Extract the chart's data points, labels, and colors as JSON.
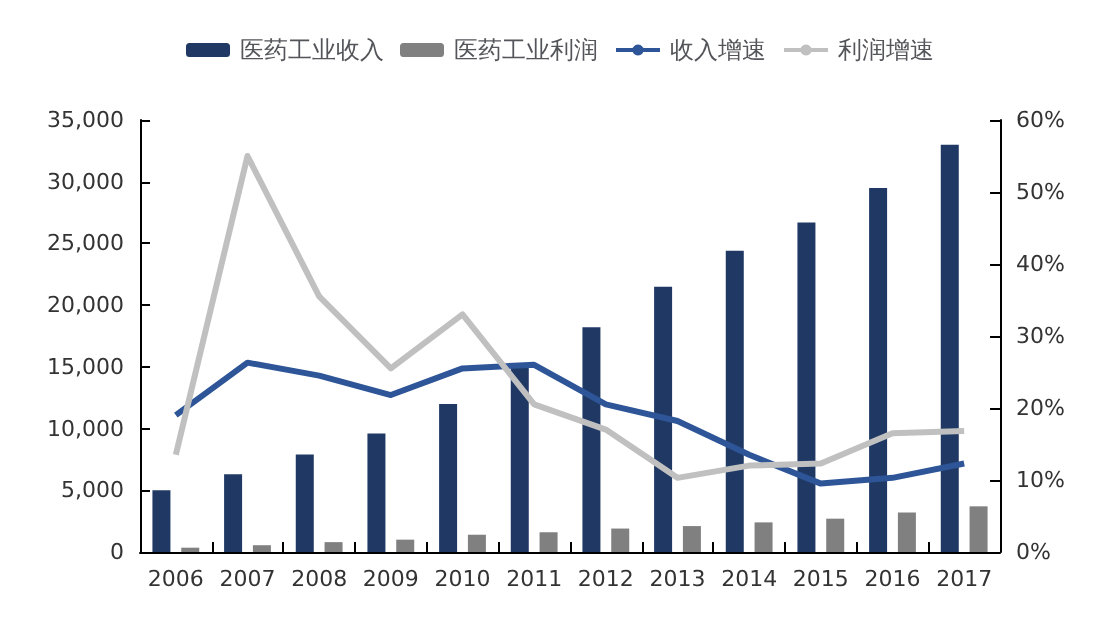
{
  "chart_data": {
    "type": "bar",
    "categories": [
      "2006",
      "2007",
      "2008",
      "2009",
      "2010",
      "2011",
      "2012",
      "2013",
      "2014",
      "2015",
      "2016",
      "2017"
    ],
    "series": [
      {
        "name": "医药工业收入",
        "color": "#1f3864",
        "values": [
          5000,
          6300,
          7900,
          9600,
          12000,
          15300,
          18200,
          21500,
          24400,
          26700,
          29500,
          33000
        ]
      },
      {
        "name": "医药工业利润",
        "color": "#808080",
        "values": [
          350,
          550,
          800,
          1000,
          1400,
          1600,
          1900,
          2100,
          2400,
          2700,
          3200,
          3700
        ]
      },
      {
        "name": "收入增速",
        "type": "line",
        "axis": "y2",
        "color": "#2e5597",
        "values": [
          19,
          26.3,
          24.5,
          21.8,
          25.5,
          26,
          20.5,
          18.2,
          13.5,
          9.5,
          10.3,
          12.3
        ]
      },
      {
        "name": "利润增速",
        "type": "line",
        "axis": "y2",
        "color": "#c0c0c0",
        "values": [
          13.5,
          55,
          35.5,
          25.5,
          33,
          20.5,
          17,
          10.3,
          12,
          12.3,
          16.5,
          16.8
        ]
      }
    ],
    "ylim": [
      0,
      35000
    ],
    "yticks": [
      {
        "value": 0,
        "label": "0"
      },
      {
        "value": 5000,
        "label": "5,000"
      },
      {
        "value": 10000,
        "label": "10,000"
      },
      {
        "value": 15000,
        "label": "15,000"
      },
      {
        "value": 20000,
        "label": "20,000"
      },
      {
        "value": 25000,
        "label": "25,000"
      },
      {
        "value": 30000,
        "label": "30,000"
      },
      {
        "value": 35000,
        "label": "35,000"
      }
    ],
    "y2lim": [
      0,
      60
    ],
    "y2ticks": [
      {
        "value": 0,
        "label": "0%"
      },
      {
        "value": 10,
        "label": "10%"
      },
      {
        "value": 20,
        "label": "20%"
      },
      {
        "value": 30,
        "label": "30%"
      },
      {
        "value": 40,
        "label": "40%"
      },
      {
        "value": 50,
        "label": "50%"
      },
      {
        "value": 60,
        "label": "60%"
      }
    ],
    "legend": "top",
    "grid": false
  }
}
